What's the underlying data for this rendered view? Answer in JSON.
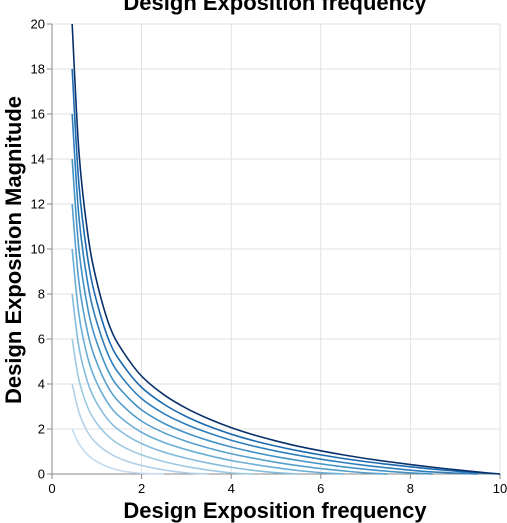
{
  "chart_data": {
    "type": "line",
    "title": "Design Exposition frequency",
    "xlabel": "Design Exposition frequency",
    "ylabel": "Design Exposition Magnitude",
    "xlim": [
      0,
      10
    ],
    "ylim": [
      0,
      20
    ],
    "x_ticks": [
      "0",
      "2",
      "4",
      "6",
      "8",
      "10"
    ],
    "y_ticks": [
      "0",
      "2",
      "4",
      "6",
      "8",
      "10",
      "12",
      "14",
      "16",
      "18",
      "20"
    ],
    "grid": true,
    "legend": "none",
    "series": [
      {
        "color": "#c6dbef",
        "x": [
          0.45,
          0.6,
          0.8,
          1.0,
          1.3,
          1.6,
          2.0,
          2.5
        ],
        "y": [
          2.0,
          1.35,
          0.85,
          0.55,
          0.28,
          0.12,
          0.03,
          0.0
        ]
      },
      {
        "color": "#b2d0e9",
        "x": [
          0.45,
          0.6,
          0.8,
          1.0,
          1.3,
          1.6,
          2.0,
          2.5,
          3.0,
          3.5
        ],
        "y": [
          4.0,
          2.75,
          1.85,
          1.35,
          0.9,
          0.62,
          0.38,
          0.18,
          0.05,
          0.0
        ]
      },
      {
        "color": "#9ecae1",
        "x": [
          0.45,
          0.6,
          0.8,
          1.0,
          1.3,
          1.6,
          2.0,
          2.5,
          3.0,
          3.5,
          4.0,
          4.5
        ],
        "y": [
          6.0,
          4.2,
          2.95,
          2.25,
          1.6,
          1.2,
          0.85,
          0.55,
          0.33,
          0.17,
          0.05,
          0.0
        ]
      },
      {
        "color": "#85bcdc",
        "x": [
          0.45,
          0.6,
          0.8,
          1.0,
          1.3,
          1.6,
          2.0,
          2.5,
          3.0,
          3.5,
          4.0,
          4.5,
          5.0,
          5.5
        ],
        "y": [
          8.0,
          5.65,
          4.05,
          3.15,
          2.3,
          1.8,
          1.35,
          0.97,
          0.7,
          0.48,
          0.3,
          0.16,
          0.06,
          0.0
        ]
      },
      {
        "color": "#6baed6",
        "x": [
          0.45,
          0.6,
          0.8,
          1.0,
          1.3,
          1.6,
          2.0,
          2.5,
          3.0,
          3.5,
          4.0,
          4.5,
          5.0,
          5.5,
          6.0,
          6.5
        ],
        "y": [
          10.0,
          7.1,
          5.15,
          4.05,
          3.0,
          2.4,
          1.85,
          1.4,
          1.08,
          0.82,
          0.6,
          0.43,
          0.28,
          0.15,
          0.06,
          0.0
        ]
      },
      {
        "color": "#579fcc",
        "x": [
          0.45,
          0.6,
          0.8,
          1.0,
          1.3,
          1.6,
          2.0,
          2.5,
          3.0,
          3.5,
          4.0,
          4.5,
          5.0,
          5.5,
          6.0,
          6.5,
          7.0,
          7.5
        ],
        "y": [
          12.0,
          8.55,
          6.25,
          4.95,
          3.7,
          3.0,
          2.35,
          1.83,
          1.45,
          1.15,
          0.9,
          0.7,
          0.52,
          0.37,
          0.24,
          0.14,
          0.05,
          0.0
        ]
      },
      {
        "color": "#4292c6",
        "x": [
          0.45,
          0.6,
          0.8,
          1.0,
          1.3,
          1.6,
          2.0,
          2.5,
          3.0,
          3.5,
          4.0,
          4.5,
          5.0,
          5.5,
          6.0,
          6.5,
          7.0,
          7.5,
          8.0,
          8.5
        ],
        "y": [
          14.0,
          10.0,
          7.35,
          5.85,
          4.4,
          3.6,
          2.85,
          2.25,
          1.82,
          1.48,
          1.2,
          0.97,
          0.77,
          0.6,
          0.45,
          0.32,
          0.21,
          0.12,
          0.05,
          0.0
        ]
      },
      {
        "color": "#2f7ebc",
        "x": [
          0.45,
          0.6,
          0.8,
          1.0,
          1.3,
          1.6,
          2.0,
          2.5,
          3.0,
          3.5,
          4.0,
          4.5,
          5.0,
          5.5,
          6.0,
          6.5,
          7.0,
          7.5,
          8.0,
          8.5,
          9.0,
          9.5
        ],
        "y": [
          16.0,
          11.45,
          8.45,
          6.75,
          5.1,
          4.2,
          3.35,
          2.68,
          2.2,
          1.82,
          1.5,
          1.24,
          1.02,
          0.83,
          0.66,
          0.51,
          0.38,
          0.27,
          0.17,
          0.09,
          0.04,
          0.0
        ]
      },
      {
        "color": "#1c6aae",
        "x": [
          0.45,
          0.6,
          0.8,
          1.0,
          1.3,
          1.6,
          2.0,
          2.5,
          3.0,
          3.5,
          4.0,
          4.5,
          5.0,
          5.5,
          6.0,
          6.5,
          7.0,
          7.5,
          8.0,
          8.5,
          9.0,
          9.5,
          10.0
        ],
        "y": [
          18.0,
          12.9,
          9.55,
          7.65,
          5.8,
          4.8,
          3.85,
          3.1,
          2.55,
          2.12,
          1.77,
          1.48,
          1.24,
          1.03,
          0.85,
          0.69,
          0.55,
          0.43,
          0.32,
          0.22,
          0.13,
          0.06,
          0.0
        ]
      },
      {
        "color": "#08306b",
        "x": [
          0.45,
          0.6,
          0.8,
          1.0,
          1.3,
          1.6,
          2.0,
          2.5,
          3.0,
          3.5,
          4.0,
          4.5,
          5.0,
          5.5,
          6.0,
          6.5,
          7.0,
          7.5,
          8.0,
          8.5,
          9.0,
          9.5,
          10.0
        ],
        "y": [
          20.0,
          14.35,
          10.65,
          8.55,
          6.5,
          5.4,
          4.35,
          3.52,
          2.92,
          2.45,
          2.06,
          1.74,
          1.47,
          1.23,
          1.03,
          0.85,
          0.69,
          0.55,
          0.42,
          0.3,
          0.19,
          0.09,
          0.0
        ]
      }
    ]
  }
}
